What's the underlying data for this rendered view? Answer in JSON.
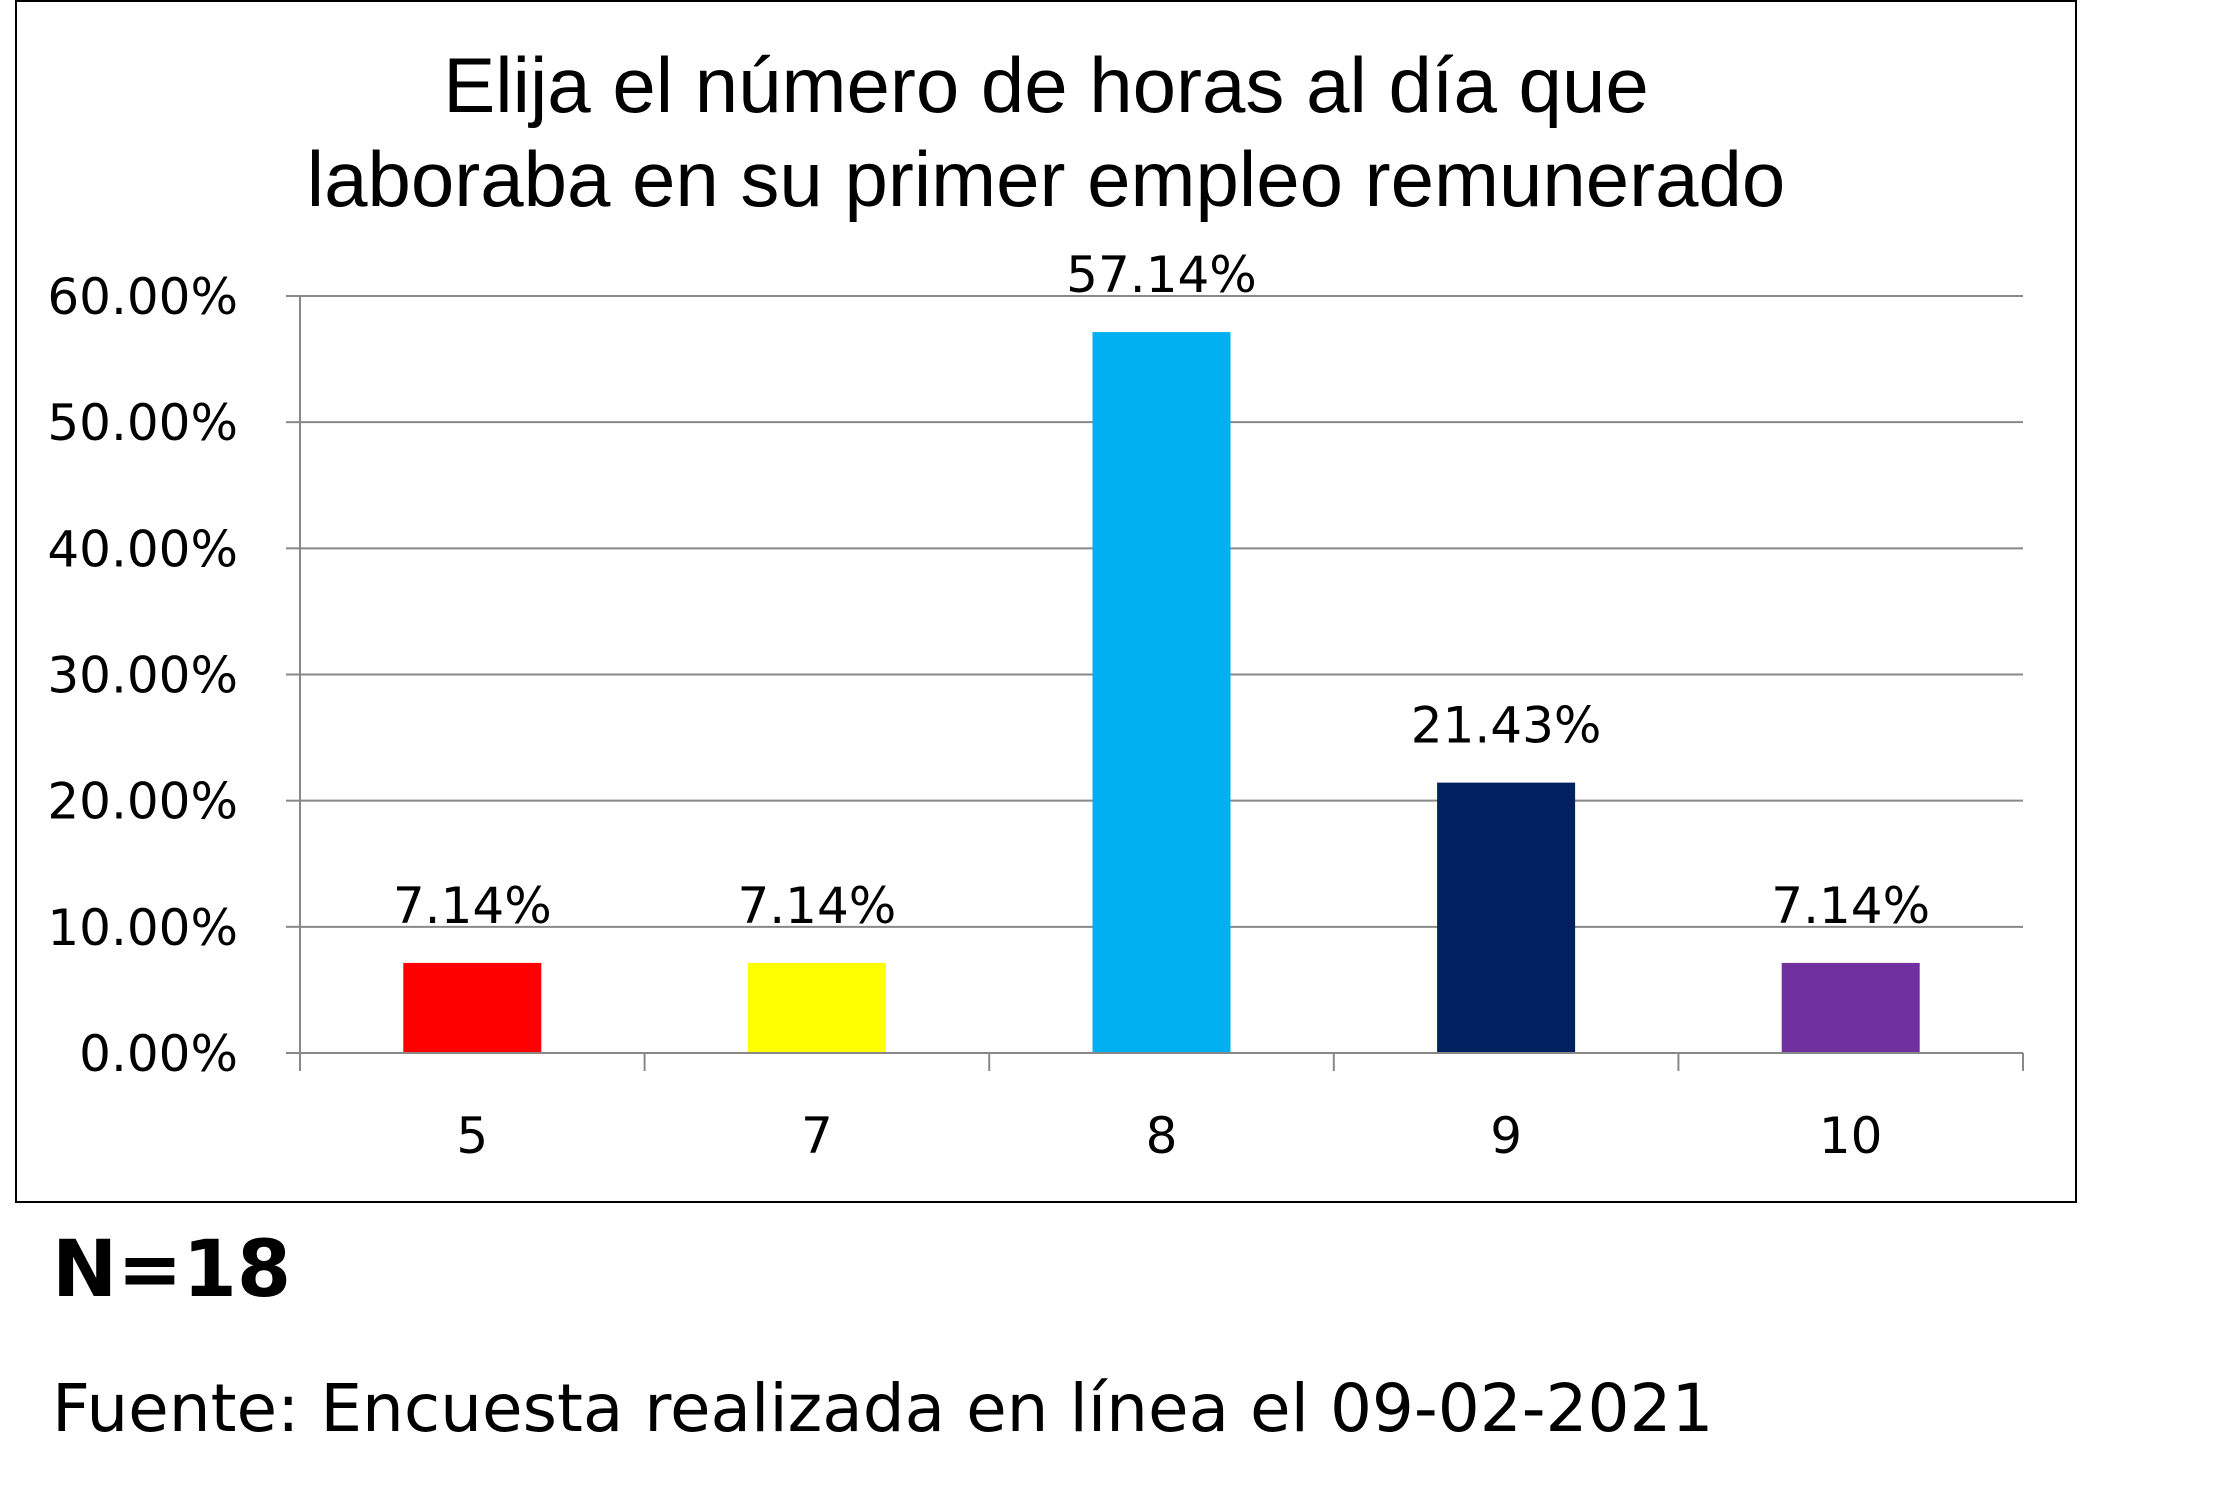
{
  "chart_data": {
    "type": "bar",
    "title_lines": [
      "Elija el número de horas al día que",
      "laboraba en su primer empleo remunerado"
    ],
    "categories": [
      "5",
      "7",
      "8",
      "9",
      "10"
    ],
    "values": [
      7.14,
      7.14,
      57.14,
      21.43,
      7.14
    ],
    "data_labels": [
      "7.14%",
      "7.14%",
      "57.14%",
      "21.43%",
      "7.14%"
    ],
    "colors": [
      "#FF0000",
      "#FFFF00",
      "#00B0F0",
      "#002060",
      "#7030A0"
    ],
    "ylim": [
      0,
      60
    ],
    "yticks": [
      0,
      10,
      20,
      30,
      40,
      50,
      60
    ],
    "ytick_labels": [
      "0.00%",
      "10.00%",
      "20.00%",
      "30.00%",
      "40.00%",
      "50.00%",
      "60.00%"
    ],
    "xlabel": "",
    "ylabel": "",
    "grid": true,
    "legend": "none"
  },
  "notes": {
    "n": "N=18",
    "source": "Fuente: Encuesta realizada en línea el 09-02-2021"
  }
}
